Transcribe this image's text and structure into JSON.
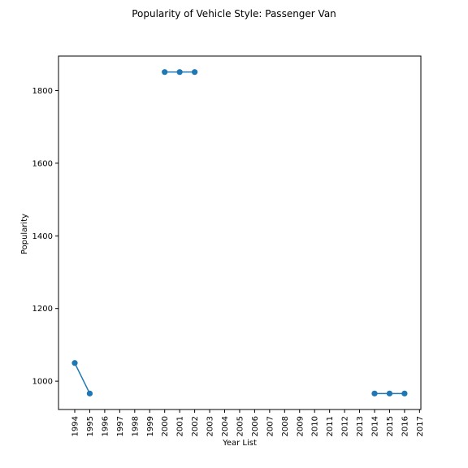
{
  "chart_data": {
    "type": "line",
    "title": "Popularity of Vehicle Style: Passenger Van",
    "xlabel": "Year List",
    "ylabel": "Popularity",
    "categories": [
      "1994",
      "1995",
      "1996",
      "1997",
      "1998",
      "1999",
      "2000",
      "2001",
      "2002",
      "2003",
      "2004",
      "2005",
      "2006",
      "2007",
      "2008",
      "2009",
      "2010",
      "2011",
      "2012",
      "2013",
      "2014",
      "2015",
      "2016",
      "2017"
    ],
    "yticks": [
      1000,
      1200,
      1400,
      1600,
      1800
    ],
    "ylim": [
      922,
      1895
    ],
    "grid": false,
    "colors": {
      "series": "#1f77b4"
    },
    "series": [
      {
        "values": [
          1050,
          966,
          null,
          null,
          null,
          null,
          1851,
          1851,
          1851,
          null,
          null,
          null,
          null,
          null,
          null,
          null,
          null,
          null,
          null,
          null,
          966,
          966,
          966,
          null
        ]
      }
    ]
  }
}
